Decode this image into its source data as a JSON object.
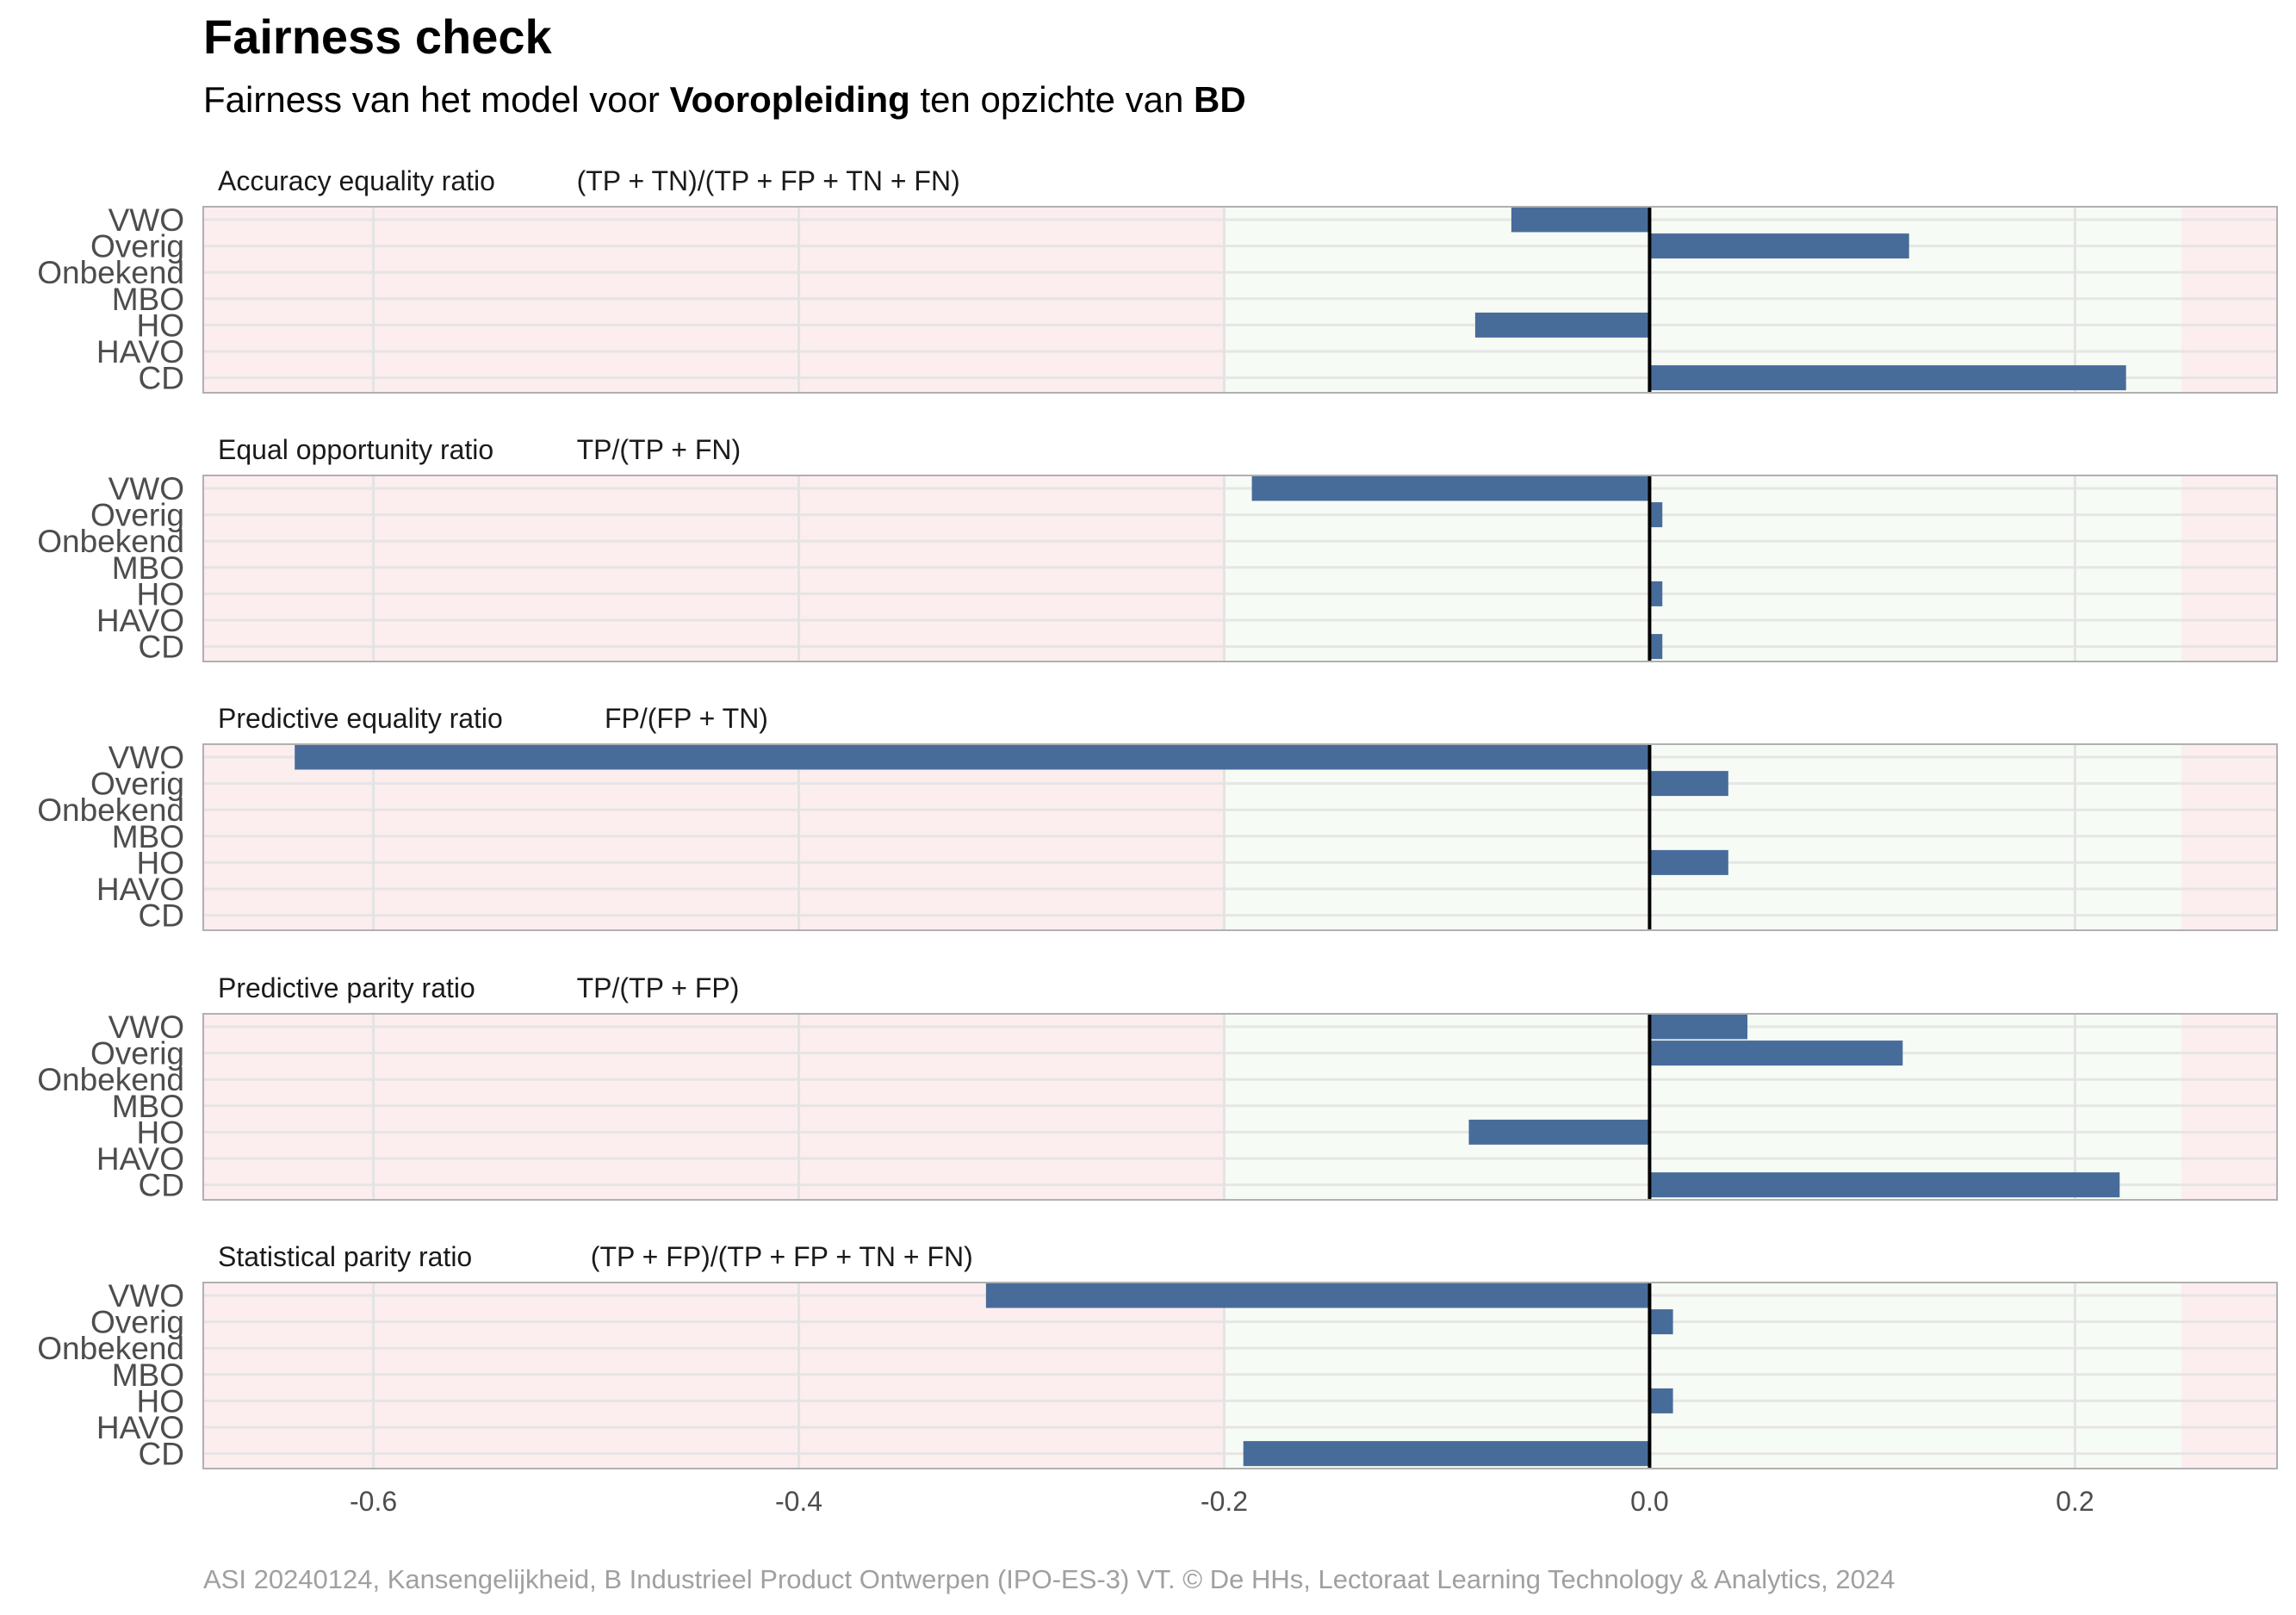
{
  "title": "Fairness check",
  "subtitle": {
    "prefix": "Fairness van het model voor ",
    "variable": "Vooropleiding",
    "middle": " ten opzichte van ",
    "reference": "BD"
  },
  "caption": "ASI 20240124, Kansengelijkheid, B Industrieel Product Ontwerpen (IPO-ES-3) VT. © De HHs, Lectoraat Learning Technology & Analytics, 2024",
  "colors": {
    "bar": "#486c9a",
    "fair_band": "#f7fbf5",
    "unfair_band": "#fcedef",
    "zero_line": "#000000",
    "grid": "#e3e3e3",
    "panel_border": "#b0b0b0"
  },
  "chart_data": {
    "type": "bar",
    "orientation": "horizontal",
    "categories": [
      "VWO",
      "Overig",
      "Onbekend",
      "MBO",
      "HO",
      "HAVO",
      "CD"
    ],
    "xlim": [
      -0.68,
      0.295
    ],
    "x_ticks": [
      -0.6,
      -0.4,
      -0.2,
      0.0,
      0.2
    ],
    "x_tick_labels": [
      "-0.6",
      "-0.4",
      "-0.2",
      "0.0",
      "0.2"
    ],
    "fair_range": [
      -0.2,
      0.25
    ],
    "grid": true,
    "panels": [
      {
        "metric": "Accuracy equality ratio",
        "formula": "(TP + TN)/(TP + FP + TN + FN)",
        "values": [
          -0.065,
          0.122,
          0,
          0,
          -0.082,
          0,
          0.224
        ]
      },
      {
        "metric": "Equal opportunity ratio",
        "formula": "TP/(TP + FN)",
        "values": [
          -0.187,
          0.006,
          0,
          0,
          0.006,
          0,
          0.006
        ]
      },
      {
        "metric": "Predictive equality ratio",
        "formula": "FP/(FP + TN)",
        "values": [
          -0.637,
          0.037,
          0,
          0,
          0.037,
          0,
          0
        ]
      },
      {
        "metric": "Predictive parity ratio",
        "formula": "TP/(TP + FP)",
        "values": [
          0.046,
          0.119,
          0,
          0,
          -0.085,
          0,
          0.221
        ]
      },
      {
        "metric": "Statistical parity ratio",
        "formula": "(TP + FP)/(TP + FP + TN + FN)",
        "values": [
          -0.312,
          0.011,
          0,
          0,
          0.011,
          0,
          -0.191
        ]
      }
    ]
  }
}
